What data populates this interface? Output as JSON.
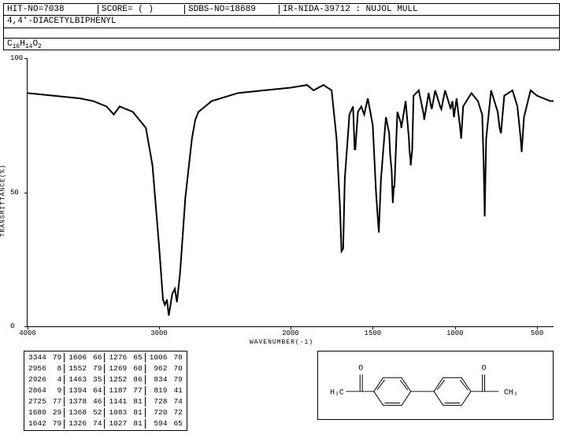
{
  "header": {
    "hit_no": "HIT-NO=7038",
    "score": "SCORE=  (  )",
    "sdbs": "SDBS-NO=18689",
    "ir": "IR-NIDA-39712 : NUJOL MULL"
  },
  "compound_name": "4,4'-DIACETYLBIPHENYL",
  "formula_html": "C<sub>16</sub>H<sub>14</sub>O<sub>2</sub>",
  "chart": {
    "type": "line",
    "y_label": "TRANSMITTANCE(%)",
    "x_label": "WAVENUMBER(-1)",
    "ylim": [
      0,
      100
    ],
    "yticks": [
      0,
      50,
      100
    ],
    "xlim": [
      4000,
      400
    ],
    "xticks": [
      4000,
      3000,
      2000,
      1500,
      1000,
      500
    ],
    "line_color": "#000000",
    "background_color": "#ffffff",
    "curve": [
      [
        4000,
        87
      ],
      [
        3800,
        86
      ],
      [
        3600,
        85
      ],
      [
        3500,
        84
      ],
      [
        3400,
        82
      ],
      [
        3344,
        79
      ],
      [
        3300,
        82
      ],
      [
        3200,
        80
      ],
      [
        3100,
        74
      ],
      [
        3050,
        60
      ],
      [
        3000,
        30
      ],
      [
        2970,
        10
      ],
      [
        2956,
        8
      ],
      [
        2940,
        10
      ],
      [
        2926,
        4
      ],
      [
        2900,
        12
      ],
      [
        2880,
        14
      ],
      [
        2864,
        9
      ],
      [
        2840,
        20
      ],
      [
        2800,
        48
      ],
      [
        2750,
        70
      ],
      [
        2725,
        77
      ],
      [
        2700,
        80
      ],
      [
        2600,
        84
      ],
      [
        2400,
        87
      ],
      [
        2200,
        88
      ],
      [
        2000,
        89
      ],
      [
        1900,
        90
      ],
      [
        1860,
        88
      ],
      [
        1800,
        90
      ],
      [
        1750,
        88
      ],
      [
        1720,
        70
      ],
      [
        1700,
        45
      ],
      [
        1690,
        28
      ],
      [
        1680,
        29
      ],
      [
        1670,
        55
      ],
      [
        1650,
        72
      ],
      [
        1642,
        79
      ],
      [
        1620,
        82
      ],
      [
        1610,
        66
      ],
      [
        1606,
        66
      ],
      [
        1590,
        80
      ],
      [
        1570,
        82
      ],
      [
        1552,
        79
      ],
      [
        1530,
        85
      ],
      [
        1500,
        75
      ],
      [
        1480,
        50
      ],
      [
        1463,
        35
      ],
      [
        1450,
        55
      ],
      [
        1420,
        78
      ],
      [
        1400,
        72
      ],
      [
        1394,
        64
      ],
      [
        1385,
        58
      ],
      [
        1378,
        46
      ],
      [
        1372,
        52
      ],
      [
        1368,
        52
      ],
      [
        1350,
        80
      ],
      [
        1330,
        76
      ],
      [
        1326,
        74
      ],
      [
        1300,
        84
      ],
      [
        1280,
        70
      ],
      [
        1276,
        65
      ],
      [
        1270,
        62
      ],
      [
        1269,
        60
      ],
      [
        1260,
        66
      ],
      [
        1252,
        86
      ],
      [
        1220,
        88
      ],
      [
        1190,
        79
      ],
      [
        1187,
        77
      ],
      [
        1160,
        87
      ],
      [
        1145,
        82
      ],
      [
        1141,
        81
      ],
      [
        1120,
        88
      ],
      [
        1090,
        82
      ],
      [
        1083,
        81
      ],
      [
        1060,
        88
      ],
      [
        1030,
        82
      ],
      [
        1027,
        81
      ],
      [
        1015,
        84
      ],
      [
        1006,
        78
      ],
      [
        990,
        85
      ],
      [
        970,
        75
      ],
      [
        962,
        70
      ],
      [
        950,
        82
      ],
      [
        900,
        87
      ],
      [
        860,
        84
      ],
      [
        840,
        80
      ],
      [
        834,
        79
      ],
      [
        825,
        60
      ],
      [
        819,
        41
      ],
      [
        810,
        70
      ],
      [
        780,
        88
      ],
      [
        740,
        80
      ],
      [
        728,
        74
      ],
      [
        720,
        72
      ],
      [
        700,
        86
      ],
      [
        650,
        88
      ],
      [
        620,
        82
      ],
      [
        600,
        70
      ],
      [
        594,
        65
      ],
      [
        580,
        78
      ],
      [
        540,
        88
      ],
      [
        500,
        86
      ],
      [
        460,
        85
      ],
      [
        420,
        84
      ],
      [
        400,
        84
      ]
    ]
  },
  "peaks": [
    [
      [
        3344,
        79
      ],
      [
        1606,
        66
      ],
      [
        1276,
        65
      ],
      [
        1006,
        78
      ]
    ],
    [
      [
        2956,
        8
      ],
      [
        1552,
        79
      ],
      [
        1269,
        60
      ],
      [
        962,
        70
      ]
    ],
    [
      [
        2926,
        4
      ],
      [
        1463,
        35
      ],
      [
        1252,
        86
      ],
      [
        834,
        79
      ]
    ],
    [
      [
        2864,
        9
      ],
      [
        1394,
        64
      ],
      [
        1187,
        77
      ],
      [
        819,
        41
      ]
    ],
    [
      [
        2725,
        77
      ],
      [
        1378,
        46
      ],
      [
        1141,
        81
      ],
      [
        728,
        74
      ]
    ],
    [
      [
        1680,
        29
      ],
      [
        1368,
        52
      ],
      [
        1083,
        81
      ],
      [
        720,
        72
      ]
    ],
    [
      [
        1642,
        79
      ],
      [
        1326,
        74
      ],
      [
        1027,
        81
      ],
      [
        594,
        65
      ]
    ]
  ],
  "structure": {
    "labels": {
      "left": "H₃C",
      "right": "CH₃",
      "o": "O"
    }
  }
}
